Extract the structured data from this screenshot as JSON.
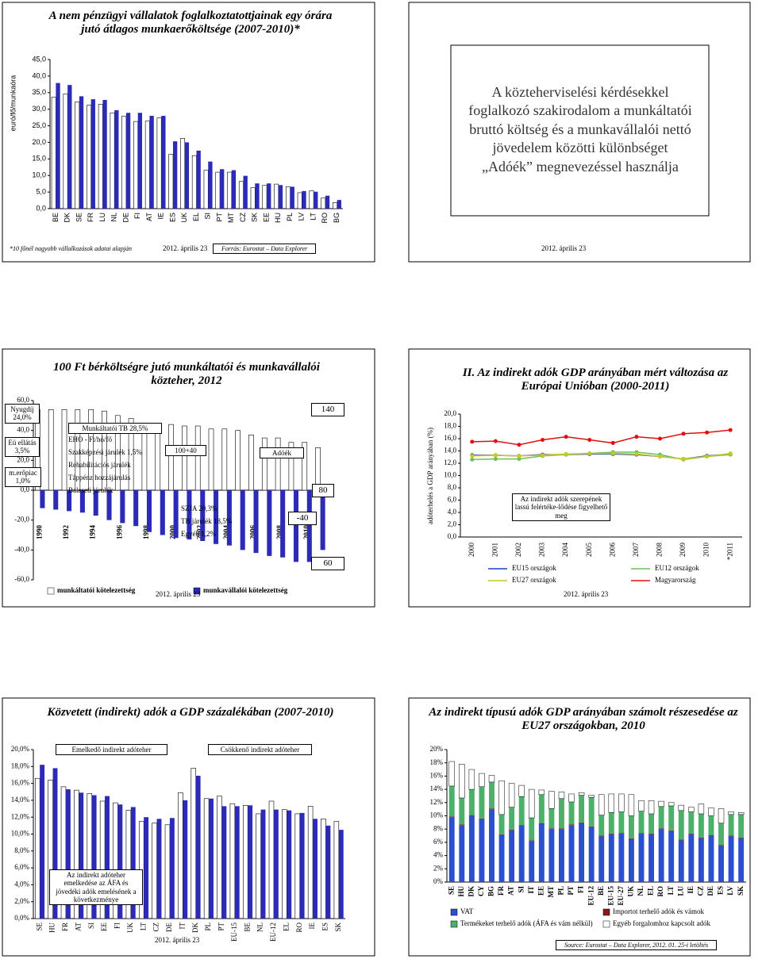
{
  "chart_data": [
    {
      "type": "bar",
      "title": "A nem pénzügyi vállalatok foglalkoztatottjainak egy órára jutó átlagos munkaerőköltsége (2007-2010)*",
      "y_label": "euró/fő/munkaóra",
      "footnote": "*10 főnél nagyobb vállalkozások adatai alapján",
      "date": "2012. április 23",
      "source": "Forrás: Eurostat – Data Explorer",
      "categories": [
        "BE",
        "DK",
        "SE",
        "FR",
        "LU",
        "NL",
        "DE",
        "FI",
        "AT",
        "IE",
        "ES",
        "UK",
        "EL",
        "SI",
        "PT",
        "MT",
        "CZ",
        "SK",
        "EE",
        "HU",
        "PL",
        "LV",
        "LT",
        "RO",
        "BG"
      ],
      "series": [
        {
          "color": "#ffffff",
          "values": [
            33.6,
            34.6,
            32.2,
            31.2,
            31.5,
            28.9,
            27.9,
            26.3,
            26.4,
            27.4,
            16.4,
            21.2,
            16.0,
            11.6,
            11.0,
            11.0,
            8.2,
            6.3,
            7.0,
            7.4,
            6.6,
            4.8,
            5.4,
            3.2,
            1.8
          ]
        },
        {
          "color": "#2b2bb8",
          "values": [
            37.9,
            37.3,
            33.9,
            33.0,
            32.8,
            29.7,
            28.9,
            28.9,
            28.0,
            28.0,
            20.3,
            20.0,
            17.5,
            14.2,
            11.9,
            11.6,
            9.9,
            7.6,
            7.6,
            7.1,
            6.6,
            5.3,
            5.1,
            3.9,
            2.6
          ]
        }
      ],
      "ylim": [
        0,
        45
      ],
      "yticks": [
        {
          "value": 0,
          "label": "0,0"
        },
        {
          "value": 5,
          "label": "5,0"
        },
        {
          "value": 10,
          "label": "10,0"
        },
        {
          "value": 15,
          "label": "15,0"
        },
        {
          "value": 20,
          "label": "20,0"
        },
        {
          "value": 25,
          "label": "25,0"
        },
        {
          "value": 30,
          "label": "30,0"
        },
        {
          "value": 35,
          "label": "35,0"
        },
        {
          "value": 40,
          "label": "40,0"
        },
        {
          "value": 45,
          "label": "45,0"
        }
      ]
    },
    {
      "type": "bar",
      "title": "100 Ft bérköltségre jutó munkáltatói és munkavállalói közteher, 2012",
      "date": "2012. április 23",
      "categories": [
        "1990",
        null,
        "1992",
        null,
        "1994",
        null,
        "1996",
        null,
        "1998",
        null,
        "2000",
        null,
        "2002",
        null,
        "2004",
        null,
        "2006",
        null,
        "2008",
        null,
        "2010",
        null
      ],
      "series": [
        {
          "name": "munkáltatói kötelezettség",
          "color": "#ffffff",
          "values": [
            54,
            54,
            54,
            54,
            54,
            53,
            50,
            48,
            45,
            44,
            44,
            43,
            43,
            41,
            41,
            40,
            37,
            35,
            35,
            32,
            32,
            28.5
          ]
        },
        {
          "name": "munkavállalói kötelezettség",
          "color": "#2b2bb8",
          "values": [
            -12,
            -13,
            -14,
            -15,
            -17,
            -20,
            -22,
            -24,
            -28,
            -30,
            -32,
            -33,
            -34,
            -36,
            -37,
            -40,
            -42,
            -44,
            -45,
            -48,
            -48,
            -40
          ]
        }
      ],
      "annotations": [
        "Nyugdíj 24,0%",
        "Eü ellátás 3,5%",
        "m.erőpiac 1,0%",
        "Munkáltatói TB 28,5%",
        "EHO - Ft/hó/fő",
        "Szakképzési járulék 1,5%",
        "Rehabilitációs járulék",
        "Táppénz hozzájárulás",
        "Baleseti járulék",
        "100+40",
        "Adóék",
        "SZJA 20,3%",
        "TB járulék 18,5%",
        "Egyéb 1,2%",
        "140",
        "80",
        "-40",
        "60"
      ],
      "ylim": [
        -60,
        60
      ],
      "yticks": [
        {
          "value": -60,
          "label": "-60,0"
        },
        {
          "value": -40,
          "label": "-40,0"
        },
        {
          "value": -20,
          "label": "-20,0"
        },
        {
          "value": 0,
          "label": "0,0"
        },
        {
          "value": 20,
          "label": "20,0"
        },
        {
          "value": 40,
          "label": "40,0"
        },
        {
          "value": 60,
          "label": "60,0"
        }
      ]
    },
    {
      "type": "line",
      "title": "II. Az indirekt adók GDP arányában mért változása az Európai Unióban (2000-2011)",
      "y_label": "adóterhelés a GDP arányában (%)",
      "date": "2012. április 23",
      "categories": [
        "2000",
        "2001",
        "2002",
        "2003",
        "2004",
        "2005",
        "2006",
        "2007",
        "2008",
        "2009",
        "2010",
        "*2011"
      ],
      "series": [
        {
          "name": "EU15 országok",
          "color": "#1f3fbf",
          "values": [
            13.3,
            13.3,
            13.2,
            13.4,
            13.4,
            13.5,
            13.5,
            13.4,
            13.1,
            12.7,
            13.2,
            13.5
          ]
        },
        {
          "name": "EU12 országok",
          "color": "#6fbf5f",
          "values": [
            12.6,
            12.7,
            12.7,
            13.2,
            13.4,
            13.6,
            13.8,
            13.8,
            13.4,
            12.6,
            13.1,
            13.4
          ]
        },
        {
          "name": "EU27 országok",
          "color": "#c9c920",
          "values": [
            13.2,
            13.3,
            13.2,
            13.3,
            13.5,
            13.6,
            13.6,
            13.5,
            13.1,
            12.7,
            13.1,
            13.6
          ]
        },
        {
          "name": "Magyarország",
          "color": "#e01010",
          "values": [
            15.5,
            15.6,
            15.0,
            15.8,
            16.3,
            15.8,
            15.3,
            16.3,
            16.0,
            16.8,
            17.0,
            17.4
          ]
        }
      ],
      "annotations": [
        "Az indirekt adók szerepének lassú felértéke-lődése figyelhető meg"
      ],
      "ylim": [
        0,
        20
      ],
      "yticks": [
        {
          "value": 0,
          "label": "0,0"
        },
        {
          "value": 2,
          "label": "2,0"
        },
        {
          "value": 4,
          "label": "4,0"
        },
        {
          "value": 6,
          "label": "6,0"
        },
        {
          "value": 8,
          "label": "8,0"
        },
        {
          "value": 10,
          "label": "10,0"
        },
        {
          "value": 12,
          "label": "12,0"
        },
        {
          "value": 14,
          "label": "14,0"
        },
        {
          "value": 16,
          "label": "16,0"
        },
        {
          "value": 18,
          "label": "18,0"
        },
        {
          "value": 20,
          "label": "20,0"
        }
      ]
    },
    {
      "type": "bar",
      "title": "Közvetett (indirekt) adók a GDP százalékában (2007-2010)",
      "date": "2012. április 23",
      "categories": [
        "SE",
        "HU",
        "FR",
        "AT",
        "SI",
        "EE",
        "FI",
        "UK",
        "LT",
        "CZ",
        "DE",
        "IT",
        "DK",
        "PL",
        "PT",
        "EU-15",
        "BE",
        "NL",
        "EU-12",
        "EL",
        "RO",
        "IE",
        "ES",
        "SK"
      ],
      "series": [
        {
          "color": "#ffffff",
          "values": [
            16.6,
            16.4,
            15.6,
            15.2,
            14.8,
            13.9,
            13.7,
            12.8,
            11.5,
            11.3,
            11.1,
            14.9,
            17.8,
            14.2,
            14.5,
            13.6,
            13.4,
            12.4,
            13.9,
            12.9,
            12.4,
            13.3,
            11.8,
            11.5
          ]
        },
        {
          "color": "#2b2bb8",
          "values": [
            18.2,
            17.8,
            15.3,
            14.9,
            14.6,
            14.5,
            13.5,
            13.2,
            12.0,
            11.8,
            11.9,
            14.0,
            16.9,
            14.2,
            13.3,
            13.3,
            13.4,
            12.9,
            12.9,
            12.8,
            12.5,
            11.8,
            11.0,
            10.5
          ]
        }
      ],
      "annotations": [
        "Emelkedő indirekt adóteher",
        "Csökkenő indirekt adóteher",
        "Az indirekt adóteher emelkedése az ÁFA és jövedéki adók emelésének a következménye"
      ],
      "ylim": [
        0,
        20
      ],
      "yticks": [
        {
          "value": 0,
          "label": "0,0%"
        },
        {
          "value": 2,
          "label": "2,0%"
        },
        {
          "value": 4,
          "label": "4,0%"
        },
        {
          "value": 6,
          "label": "6,0%"
        },
        {
          "value": 8,
          "label": "8,0%"
        },
        {
          "value": 10,
          "label": "10,0%"
        },
        {
          "value": 12,
          "label": "12,0%"
        },
        {
          "value": 14,
          "label": "14,0%"
        },
        {
          "value": 16,
          "label": "16,0%"
        },
        {
          "value": 18,
          "label": "18,0%"
        },
        {
          "value": 20,
          "label": "20,0%"
        }
      ]
    },
    {
      "type": "stacked_bar",
      "title": "Az indirekt típusú adók GDP arányában számolt részesedése az EU27 országokban, 2010",
      "source": "Source: Eurostat – Data Explorer, 2012. 01. 25-i letöltés",
      "categories": [
        "SE",
        "HU",
        "DK",
        "CY",
        "BG",
        "FR",
        "AT",
        "SI",
        "IT",
        "EE",
        "MT",
        "PL",
        "PT",
        "FI",
        "EU-12",
        "BE",
        "EU-15",
        "EU-27",
        "UK",
        "NL",
        "EL",
        "RO",
        "LT",
        "LU",
        "IE",
        "CZ",
        "DE",
        "ES",
        "LV",
        "SK"
      ],
      "series": [
        {
          "name": "VAT",
          "color": "#2b4fd0",
          "values": [
            9.8,
            8.6,
            10.0,
            9.5,
            11.0,
            7.1,
            7.8,
            8.5,
            6.2,
            8.8,
            8.0,
            8.0,
            8.6,
            8.9,
            8.3,
            6.9,
            7.2,
            7.3,
            6.5,
            7.3,
            7.2,
            8.0,
            7.7,
            6.3,
            7.2,
            6.6,
            7.0,
            5.5,
            6.9,
            6.6
          ]
        },
        {
          "name": "Importot terhelő adók és vámok",
          "color": "#8b1a1a",
          "values": [
            0.1,
            0.1,
            0.1,
            0.1,
            0.1,
            0.1,
            0.1,
            0.1,
            0.1,
            0.1,
            0.1,
            0.1,
            0.1,
            0.1,
            0.1,
            0.1,
            0.1,
            0.1,
            0.1,
            0.1,
            0.1,
            0.1,
            0.1,
            0.1,
            0.1,
            0.1,
            0.1,
            0.1,
            0.1,
            0.1
          ]
        },
        {
          "name": "Termékeket terhelő adók (ÁFA és vám nélkül)",
          "color": "#4caf6a",
          "values": [
            4.6,
            4.0,
            3.9,
            4.8,
            4.0,
            3.0,
            3.4,
            4.3,
            3.4,
            4.3,
            3.0,
            4.5,
            3.4,
            4.1,
            4.4,
            3.1,
            3.2,
            3.2,
            3.4,
            3.3,
            3.0,
            3.3,
            3.7,
            4.4,
            3.3,
            3.6,
            2.9,
            3.3,
            3.2,
            3.5
          ]
        },
        {
          "name": "Egyéb forgalomhoz kapcsolt adók",
          "color": "#ffffff",
          "values": [
            3.7,
            5.1,
            3.0,
            2.0,
            1.0,
            5.1,
            3.6,
            1.7,
            4.3,
            0.7,
            2.6,
            1.0,
            1.2,
            0.4,
            0.3,
            3.1,
            2.8,
            2.7,
            3.2,
            1.6,
            2.0,
            0.8,
            0.5,
            0.8,
            0.7,
            1.5,
            1.2,
            2.2,
            0.4,
            0.3
          ]
        }
      ],
      "ylim": [
        0,
        20
      ],
      "yticks": [
        {
          "value": 0,
          "label": "0%"
        },
        {
          "value": 2,
          "label": "2%"
        },
        {
          "value": 4,
          "label": "4%"
        },
        {
          "value": 6,
          "label": "6%"
        },
        {
          "value": 8,
          "label": "8%"
        },
        {
          "value": 10,
          "label": "10%"
        },
        {
          "value": 12,
          "label": "12%"
        },
        {
          "value": 14,
          "label": "14%"
        },
        {
          "value": 16,
          "label": "16%"
        },
        {
          "value": 18,
          "label": "18%"
        },
        {
          "value": 20,
          "label": "20%"
        }
      ]
    }
  ],
  "text_slide": {
    "text": "A közteherviselési kérdésekkel foglalkozó szakirodalom a munkáltatói bruttó költség és a munkavállalói nettó jövedelem közötti különbséget „Adóék” megnevezéssel használja",
    "date": "2012. április 23"
  }
}
